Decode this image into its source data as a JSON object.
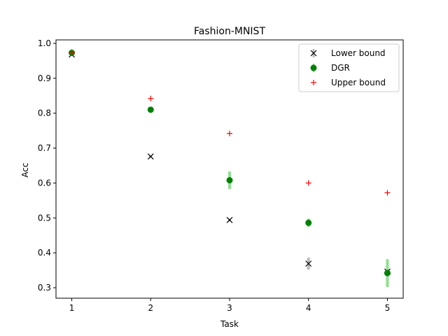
{
  "chart_data": {
    "type": "scatter",
    "title": "Fashion-MNIST",
    "xlabel": "Task",
    "ylabel": "Acc",
    "x": [
      1,
      2,
      3,
      4,
      5
    ],
    "xticks": [
      "1",
      "2",
      "3",
      "4",
      "5"
    ],
    "yticks": [
      "0.3",
      "0.4",
      "0.5",
      "0.6",
      "0.7",
      "0.8",
      "0.9",
      "1.0"
    ],
    "ytick_values": [
      0.3,
      0.4,
      0.5,
      0.6,
      0.7,
      0.8,
      0.9,
      1.0
    ],
    "xlim": [
      0.8,
      5.2
    ],
    "ylim": [
      0.27,
      1.01
    ],
    "grid": false,
    "legend_position": "top-right",
    "series": [
      {
        "name": "Lower bound",
        "marker": "x",
        "color": "#000000",
        "error_color": "#bbbbbb",
        "values": [
          0.968,
          0.676,
          0.494,
          0.369,
          0.346
        ],
        "errors": [
          0.002,
          0.004,
          0.004,
          0.017,
          0.008
        ]
      },
      {
        "name": "DGR",
        "marker": "circle",
        "color": "#008000",
        "error_color": "#90e090",
        "values": [
          0.973,
          0.81,
          0.608,
          0.486,
          0.342
        ],
        "errors": [
          0.002,
          0.005,
          0.025,
          0.012,
          0.04
        ]
      },
      {
        "name": "Upper bound",
        "marker": "plus",
        "color": "#ff0000",
        "error_color": "#ff9999",
        "values": [
          0.975,
          0.842,
          0.742,
          0.6,
          0.572
        ],
        "errors": [
          0,
          0,
          0,
          0,
          0
        ]
      }
    ]
  }
}
